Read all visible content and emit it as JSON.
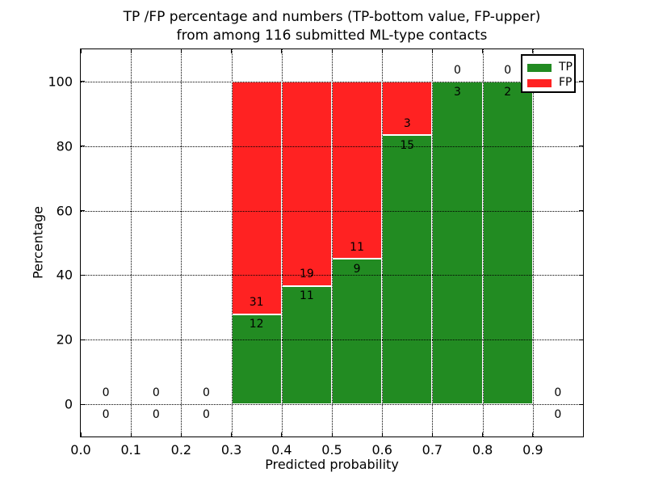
{
  "chart_data": {
    "type": "bar",
    "stacked": true,
    "title_line1": "TP /FP percentage and numbers (TP-bottom value, FP-upper)",
    "title_line2": "from among 116 submitted ML-type contacts",
    "total_contacts": 116,
    "xlabel": "Predicted probability",
    "ylabel": "Percentage",
    "xlim": [
      0.0,
      1.0
    ],
    "ylim": [
      -10,
      110
    ],
    "xticks": [
      {
        "pos": 0.0,
        "label": "0.0"
      },
      {
        "pos": 0.1,
        "label": "0.1"
      },
      {
        "pos": 0.2,
        "label": "0.2"
      },
      {
        "pos": 0.3,
        "label": "0.3"
      },
      {
        "pos": 0.4,
        "label": "0.4"
      },
      {
        "pos": 0.5,
        "label": "0.5"
      },
      {
        "pos": 0.6,
        "label": "0.6"
      },
      {
        "pos": 0.7,
        "label": "0.7"
      },
      {
        "pos": 0.8,
        "label": "0.8"
      },
      {
        "pos": 0.9,
        "label": "0.9"
      },
      {
        "pos": 1.0,
        "label": ""
      }
    ],
    "yticks": [
      {
        "pos": 0,
        "label": "0"
      },
      {
        "pos": 20,
        "label": "20"
      },
      {
        "pos": 40,
        "label": "40"
      },
      {
        "pos": 60,
        "label": "60"
      },
      {
        "pos": 80,
        "label": "80"
      },
      {
        "pos": 100,
        "label": "100"
      }
    ],
    "grid": {
      "visible": true,
      "style": "dotted"
    },
    "legend": {
      "position": "upper-right",
      "entries": [
        {
          "label": "TP",
          "color": "#228b22"
        },
        {
          "label": "FP",
          "color": "#ff2222"
        }
      ]
    },
    "colors": {
      "tp_bar": "#228b22",
      "fp_bar": "#ff2222",
      "bar_edge": "#ffffff",
      "axes": "#000000",
      "grid": "#000000",
      "text": "#000000",
      "background": "#ffffff"
    },
    "bins": [
      {
        "x0": 0.0,
        "x1": 0.1,
        "tp": 0,
        "fp": 0
      },
      {
        "x0": 0.1,
        "x1": 0.2,
        "tp": 0,
        "fp": 0
      },
      {
        "x0": 0.2,
        "x1": 0.3,
        "tp": 0,
        "fp": 0
      },
      {
        "x0": 0.3,
        "x1": 0.4,
        "tp": 12,
        "fp": 31
      },
      {
        "x0": 0.4,
        "x1": 0.5,
        "tp": 11,
        "fp": 19
      },
      {
        "x0": 0.5,
        "x1": 0.6,
        "tp": 9,
        "fp": 11
      },
      {
        "x0": 0.6,
        "x1": 0.7,
        "tp": 15,
        "fp": 3
      },
      {
        "x0": 0.7,
        "x1": 0.8,
        "tp": 3,
        "fp": 0
      },
      {
        "x0": 0.8,
        "x1": 0.9,
        "tp": 2,
        "fp": 0
      },
      {
        "x0": 0.9,
        "x1": 1.0,
        "tp": 0,
        "fp": 0
      }
    ]
  }
}
